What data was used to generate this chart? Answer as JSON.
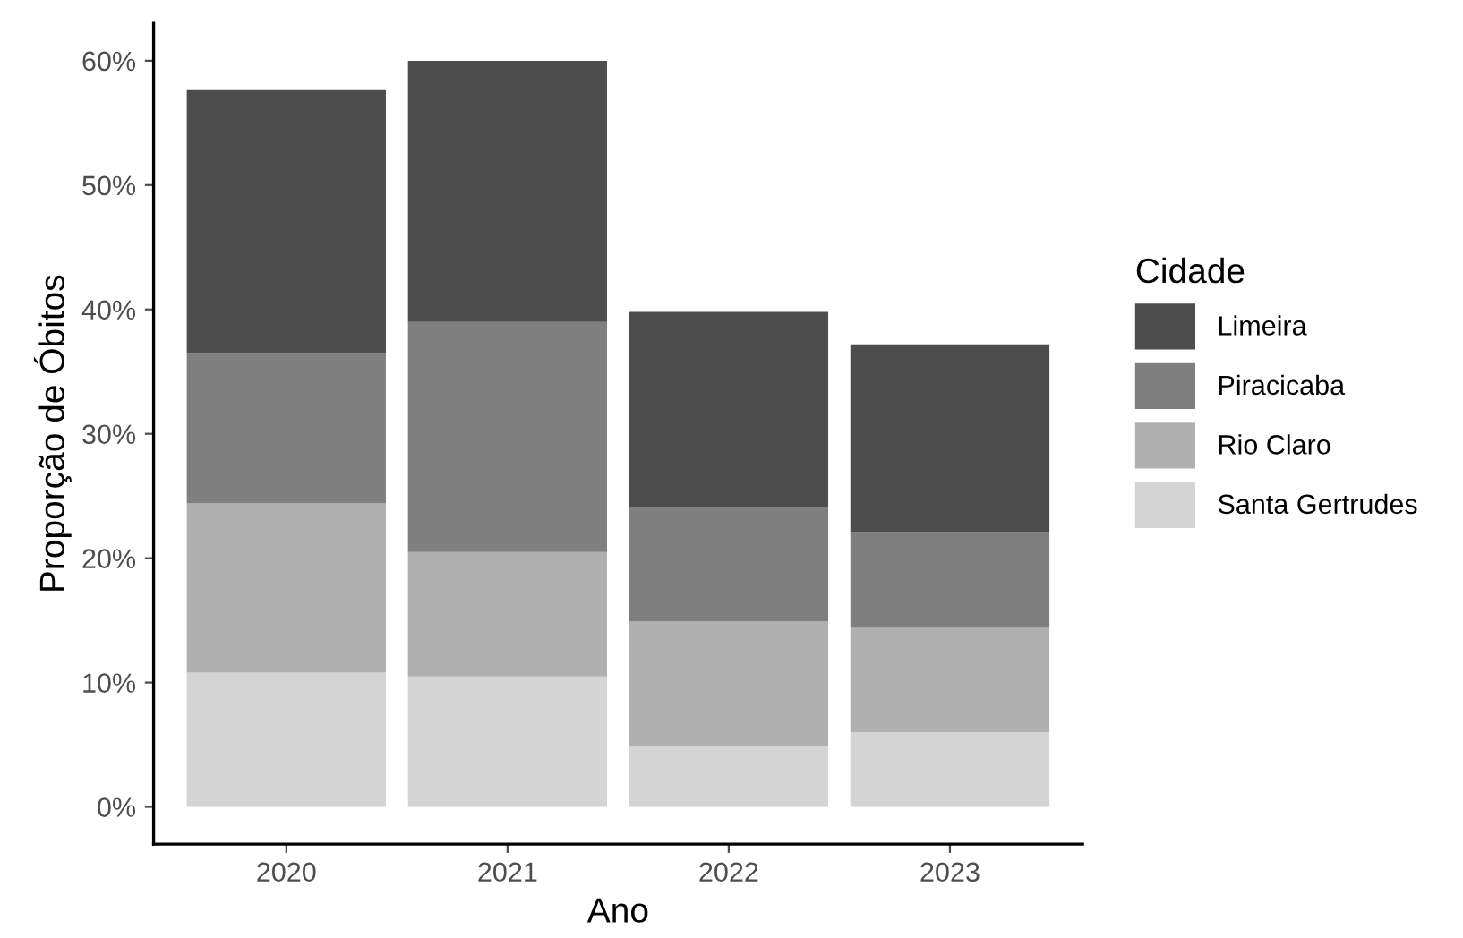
{
  "chart_data": {
    "type": "bar",
    "stacked": true,
    "xlabel": "Ano",
    "ylabel": "Proporção de Óbitos",
    "legend_title": "Cidade",
    "legend": "right",
    "grid": false,
    "categories": [
      "2020",
      "2021",
      "2022",
      "2023"
    ],
    "series": [
      {
        "name": "Santa Gertrudes",
        "color": "#d4d4d4",
        "values": [
          10.8,
          10.5,
          4.9,
          6.0
        ]
      },
      {
        "name": "Rio Claro",
        "color": "#b0b0b0",
        "values": [
          13.6,
          10.0,
          10.0,
          8.4
        ]
      },
      {
        "name": "Piracicaba",
        "color": "#7f7f7f",
        "values": [
          12.1,
          18.5,
          9.2,
          7.7
        ]
      },
      {
        "name": "Limeira",
        "color": "#4d4d4d",
        "values": [
          21.2,
          21.0,
          15.7,
          15.1
        ]
      }
    ],
    "ylim": [
      -3,
      63
    ],
    "yticks": [
      {
        "value": 0,
        "label": "0%"
      },
      {
        "value": 10,
        "label": "10%"
      },
      {
        "value": 20,
        "label": "20%"
      },
      {
        "value": 30,
        "label": "30%"
      },
      {
        "value": 40,
        "label": "40%"
      },
      {
        "value": 50,
        "label": "50%"
      },
      {
        "value": 60,
        "label": "60%"
      }
    ]
  }
}
